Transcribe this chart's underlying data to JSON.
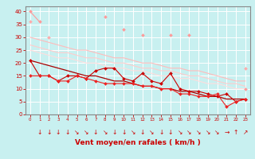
{
  "x_ticks": [
    0,
    1,
    2,
    3,
    4,
    5,
    6,
    7,
    8,
    9,
    10,
    11,
    12,
    13,
    14,
    15,
    16,
    17,
    18,
    19,
    20,
    21,
    22,
    23
  ],
  "xlabel": "Vent moyen/en rafales ( km/h )",
  "bg_color": "#c8f0f0",
  "grid_color": "#ffffff",
  "series": [
    {
      "name": "light_jagged",
      "color": "#ff9999",
      "linewidth": 0.8,
      "marker": "D",
      "markersize": 2.0,
      "y": [
        40,
        36,
        null,
        null,
        null,
        null,
        null,
        null,
        38,
        null,
        33,
        null,
        31,
        null,
        null,
        31,
        null,
        31,
        null,
        null,
        null,
        null,
        null,
        10
      ]
    },
    {
      "name": "light_diagonal_top",
      "color": "#ffaaaa",
      "linewidth": 0.8,
      "marker": "D",
      "markersize": 2.0,
      "y": [
        36,
        null,
        30,
        null,
        null,
        null,
        null,
        null,
        null,
        null,
        null,
        null,
        null,
        null,
        null,
        null,
        null,
        null,
        null,
        null,
        null,
        null,
        null,
        18
      ]
    },
    {
      "name": "light_diagonal1",
      "color": "#ffbbbb",
      "linewidth": 0.8,
      "marker": null,
      "markersize": 0,
      "y": [
        30,
        29,
        28,
        27,
        26,
        25,
        25,
        24,
        23,
        22,
        22,
        21,
        20,
        20,
        19,
        18,
        18,
        17,
        17,
        16,
        15,
        14,
        13,
        13
      ]
    },
    {
      "name": "light_diagonal2",
      "color": "#ffcccc",
      "linewidth": 0.8,
      "marker": null,
      "markersize": 0,
      "y": [
        27,
        26,
        25,
        24,
        24,
        23,
        22,
        22,
        21,
        20,
        20,
        19,
        18,
        18,
        17,
        17,
        16,
        15,
        15,
        14,
        13,
        12,
        12,
        11
      ]
    },
    {
      "name": "light_diagonal3",
      "color": "#ffdddd",
      "linewidth": 0.8,
      "marker": null,
      "markersize": 0,
      "y": [
        25,
        24,
        23,
        22,
        22,
        21,
        20,
        20,
        19,
        18,
        18,
        17,
        17,
        16,
        15,
        15,
        14,
        14,
        13,
        12,
        12,
        11,
        10,
        10
      ]
    },
    {
      "name": "dark_jagged1",
      "color": "#cc0000",
      "linewidth": 0.8,
      "marker": "D",
      "markersize": 2.0,
      "y": [
        21,
        15,
        15,
        13,
        15,
        15,
        14,
        17,
        18,
        18,
        14,
        13,
        16,
        13,
        12,
        16,
        10,
        9,
        9,
        8,
        7,
        8,
        5,
        6
      ]
    },
    {
      "name": "dark_jagged2",
      "color": "#ee2222",
      "linewidth": 0.8,
      "marker": "D",
      "markersize": 2.0,
      "y": [
        15,
        15,
        15,
        13,
        13,
        15,
        14,
        13,
        12,
        12,
        12,
        12,
        11,
        11,
        10,
        10,
        8,
        8,
        7,
        7,
        8,
        3,
        5,
        6
      ]
    },
    {
      "name": "dark_diagonal",
      "color": "#aa0000",
      "linewidth": 0.9,
      "marker": null,
      "markersize": 0,
      "y": [
        21,
        20,
        19,
        18,
        17,
        16,
        15,
        15,
        14,
        13,
        13,
        12,
        11,
        11,
        10,
        10,
        9,
        9,
        8,
        7,
        7,
        6,
        6,
        6
      ]
    }
  ],
  "ylim": [
    0,
    42
  ],
  "yticks": [
    0,
    5,
    10,
    15,
    20,
    25,
    30,
    35,
    40
  ],
  "arrow_chars": [
    "↓",
    "↓",
    "↓",
    "↓",
    "↘",
    "↘",
    "↓",
    "↘",
    "↓",
    "↓",
    "↘",
    "↓",
    "↘",
    "↓",
    "↓",
    "↘",
    "↘",
    "↘",
    "↘",
    "↘",
    "→",
    "↑",
    "↗"
  ],
  "title_color": "#cc0000",
  "axis_color": "#888888",
  "tick_color": "#cc0000",
  "spine_color": "#888888"
}
